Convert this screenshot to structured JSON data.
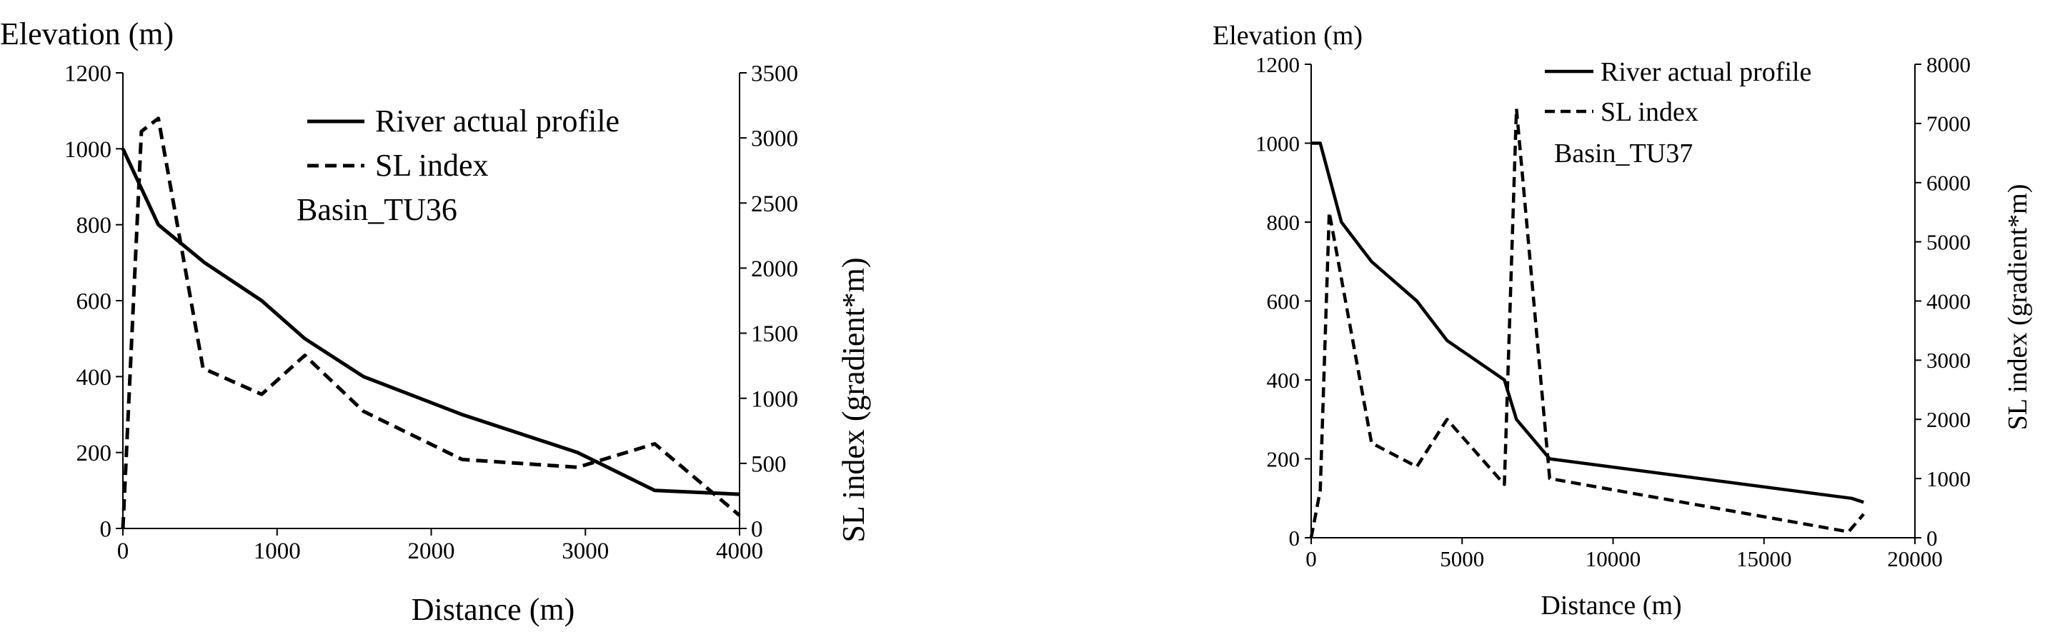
{
  "colors": {
    "line": "#000000",
    "axis": "#000000",
    "background": "#ffffff"
  },
  "chart_data": [
    {
      "type": "line",
      "title": "",
      "annotation": "Basin_TU36",
      "ylabel_left": "Elevation (m)",
      "ylabel_right": "SL index  (gradient*m)",
      "xlabel": "Distance (m)",
      "xlim": [
        0,
        4000
      ],
      "ylim_left": [
        0,
        1200
      ],
      "ylim_right": [
        0,
        3500
      ],
      "x_ticks": [
        "0",
        "1000",
        "2000",
        "3000",
        "4000"
      ],
      "y_left_ticks": [
        "0",
        "200",
        "400",
        "600",
        "800",
        "1000",
        "1200"
      ],
      "y_right_ticks": [
        "0",
        "500",
        "1000",
        "1500",
        "2000",
        "2500",
        "3000",
        "3500"
      ],
      "grid": false,
      "legend": [
        "River actual profile",
        "SL index"
      ],
      "series": [
        {
          "name": "River actual profile",
          "axis": "left",
          "style": "solid",
          "x": [
            0,
            230,
            530,
            900,
            1180,
            1560,
            2200,
            2950,
            3450,
            4000
          ],
          "y": [
            1000,
            800,
            700,
            600,
            500,
            400,
            300,
            200,
            100,
            90
          ]
        },
        {
          "name": "SL index",
          "axis": "right",
          "style": "dashed",
          "x": [
            0,
            120,
            230,
            520,
            900,
            1180,
            1560,
            2200,
            2950,
            3450,
            4000
          ],
          "y": [
            0,
            3050,
            3150,
            1230,
            1030,
            1330,
            900,
            530,
            470,
            650,
            100
          ]
        }
      ]
    },
    {
      "type": "line",
      "title": "",
      "annotation": "Basin_TU37",
      "ylabel_left": "Elevation (m)",
      "ylabel_right": "SL index  (gradient*m)",
      "xlabel": "Distance (m)",
      "xlim": [
        0,
        20000
      ],
      "ylim_left": [
        0,
        1200
      ],
      "ylim_right": [
        0,
        8000
      ],
      "x_ticks": [
        "0",
        "5000",
        "10000",
        "15000",
        "20000"
      ],
      "y_left_ticks": [
        "0",
        "200",
        "400",
        "600",
        "800",
        "1000",
        "1200"
      ],
      "y_right_ticks": [
        "0",
        "1000",
        "2000",
        "3000",
        "4000",
        "5000",
        "6000",
        "7000",
        "8000"
      ],
      "grid": false,
      "legend": [
        "River actual profile",
        "SL index"
      ],
      "series": [
        {
          "name": "River actual profile",
          "axis": "left",
          "style": "solid",
          "x": [
            0,
            300,
            1000,
            2000,
            3500,
            4500,
            6400,
            6800,
            7900,
            17900,
            18300
          ],
          "y": [
            1000,
            1000,
            800,
            700,
            600,
            500,
            400,
            300,
            200,
            100,
            90
          ]
        },
        {
          "name": "SL index",
          "axis": "right",
          "style": "dashed",
          "x": [
            0,
            300,
            600,
            2000,
            3500,
            4500,
            6400,
            6800,
            7900,
            17800,
            18300
          ],
          "y": [
            0,
            800,
            5500,
            1600,
            1200,
            2000,
            900,
            7250,
            1000,
            100,
            400
          ]
        }
      ]
    }
  ]
}
